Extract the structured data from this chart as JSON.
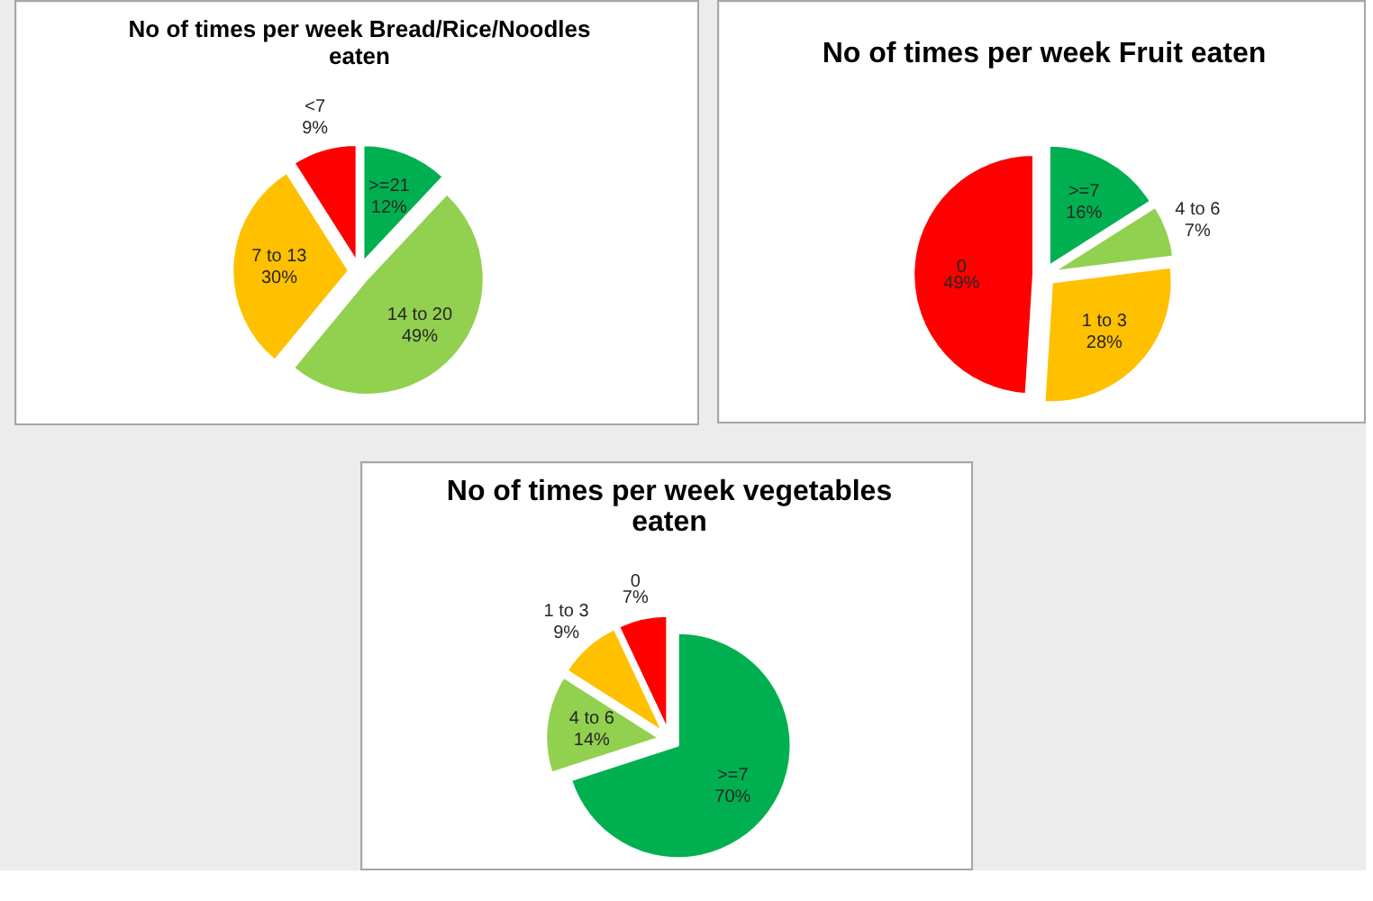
{
  "chart_data": [
    {
      "type": "pie",
      "title": "No of times per week Bread/Rice/Noodles eaten",
      "categories": [
        ">=21",
        "14 to 20",
        "7 to 13",
        "<7"
      ],
      "values": [
        12,
        49,
        30,
        9
      ],
      "colors": [
        "#00b050",
        "#92d050",
        "#ffc000",
        "#ff0000"
      ],
      "value_labels": [
        "12%",
        "49%",
        "30%",
        "9%"
      ]
    },
    {
      "type": "pie",
      "title": "No of times per week Fruit eaten",
      "categories": [
        ">=7",
        "4 to 6",
        "1 to 3",
        "0"
      ],
      "values": [
        16,
        7,
        28,
        49
      ],
      "colors": [
        "#00b050",
        "#92d050",
        "#ffc000",
        "#ff0000"
      ],
      "value_labels": [
        "16%",
        "7%",
        "28%",
        "49%"
      ]
    },
    {
      "type": "pie",
      "title": "No of times per week vegetables eaten",
      "categories": [
        ">=7",
        "4 to 6",
        "1 to 3",
        "0"
      ],
      "values": [
        70,
        14,
        9,
        7
      ],
      "colors": [
        "#00b050",
        "#92d050",
        "#ffc000",
        "#ff0000"
      ],
      "value_labels": [
        "70%",
        "14%",
        "9%",
        "7%"
      ]
    }
  ]
}
